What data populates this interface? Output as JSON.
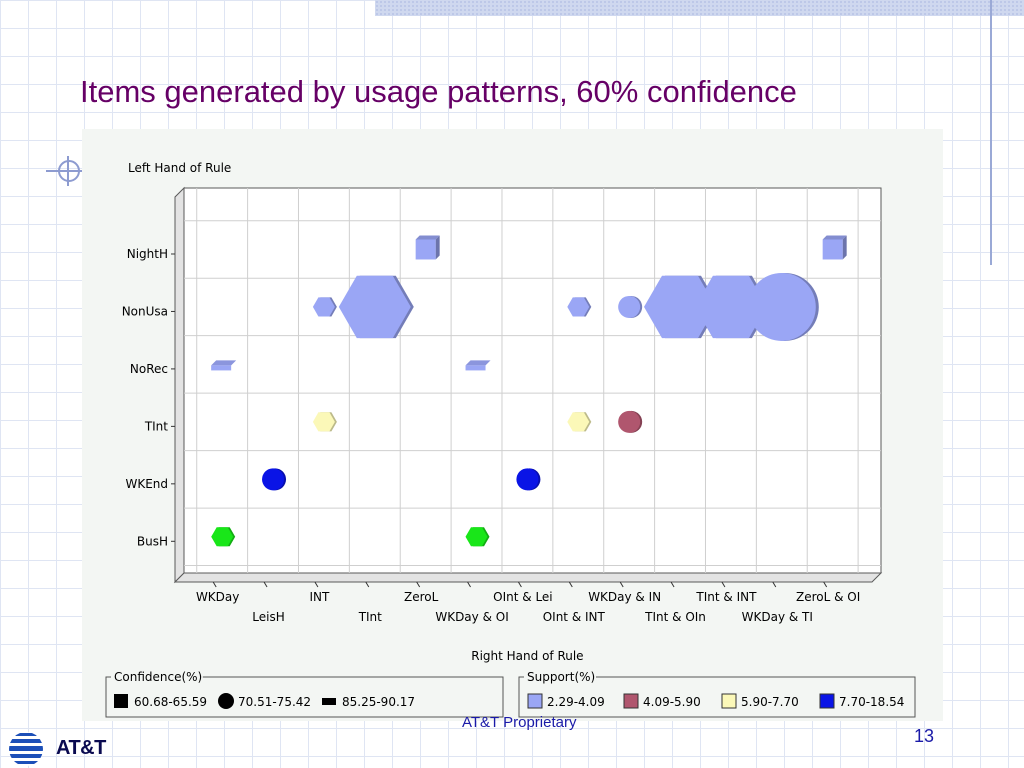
{
  "slide": {
    "title": "Items generated by usage patterns, 60% confidence",
    "footer_text": "AT&T Proprietary",
    "page_number": "13",
    "logo_text": "AT&T"
  },
  "chart_data": {
    "type": "scatter",
    "title": "",
    "ylabel": "Left Hand of Rule",
    "xlabel": "Right Hand of Rule",
    "y_categories": [
      "NightH",
      "NonUsa",
      "NoRec",
      "TInt",
      "WKEnd",
      "BusH"
    ],
    "x_categories": [
      "WKDay",
      "LeisH",
      "INT",
      "TInt",
      "ZeroL",
      "WKDay & OI",
      "OInt & Lei",
      "OInt & INT",
      "WKDay & IN",
      "TInt & OIn",
      "TInt & INT",
      "WKDay & TI",
      "ZeroL & OI"
    ],
    "points": [
      {
        "x": "ZeroL",
        "y": "NightH",
        "shape": "square",
        "support_class": "2.29-4.09",
        "size": 1
      },
      {
        "x": "ZeroL & OI",
        "y": "NightH",
        "shape": "square",
        "support_class": "2.29-4.09",
        "size": 1
      },
      {
        "x": "INT",
        "y": "NonUsa",
        "shape": "hexagon",
        "support_class": "2.29-4.09",
        "size": 1
      },
      {
        "x": "TInt",
        "y": "NonUsa",
        "shape": "hexagon",
        "support_class": "2.29-4.09",
        "size": 3
      },
      {
        "x": "OInt & INT",
        "y": "NonUsa",
        "shape": "hexagon",
        "support_class": "2.29-4.09",
        "size": 1
      },
      {
        "x": "WKDay & IN",
        "y": "NonUsa",
        "shape": "circle",
        "support_class": "2.29-4.09",
        "size": 1
      },
      {
        "x": "TInt & OIn",
        "y": "NonUsa",
        "shape": "hexagon",
        "support_class": "2.29-4.09",
        "size": 3
      },
      {
        "x": "TInt & INT",
        "y": "NonUsa",
        "shape": "hexagon",
        "support_class": "2.29-4.09",
        "size": 3
      },
      {
        "x": "WKDay & TI",
        "y": "NonUsa",
        "shape": "circle",
        "support_class": "2.29-4.09",
        "size": 3
      },
      {
        "x": "WKDay",
        "y": "NoRec",
        "shape": "flat",
        "support_class": "2.29-4.09",
        "size": 1
      },
      {
        "x": "WKDay & OI",
        "y": "NoRec",
        "shape": "flat",
        "support_class": "2.29-4.09",
        "size": 1
      },
      {
        "x": "INT",
        "y": "TInt",
        "shape": "hexagon",
        "support_class": "5.90-7.70",
        "size": 1
      },
      {
        "x": "OInt & INT",
        "y": "TInt",
        "shape": "hexagon",
        "support_class": "5.90-7.70",
        "size": 1
      },
      {
        "x": "WKDay & IN",
        "y": "TInt",
        "shape": "circle",
        "support_class": "4.09-5.90",
        "size": 1
      },
      {
        "x": "LeisH",
        "y": "WKEnd",
        "shape": "circle",
        "support_class": "7.70-18.54",
        "size": 1
      },
      {
        "x": "OInt & Lei",
        "y": "WKEnd",
        "shape": "circle",
        "support_class": "7.70-18.54",
        "size": 1
      },
      {
        "x": "WKDay",
        "y": "BusH",
        "shape": "hexagon",
        "support_class": "green",
        "size": 1
      },
      {
        "x": "WKDay & OI",
        "y": "BusH",
        "shape": "hexagon",
        "support_class": "green",
        "size": 1
      }
    ],
    "legend_confidence": {
      "title": "Confidence(%)",
      "items": [
        {
          "label": "60.68-65.59",
          "shape": "square"
        },
        {
          "label": "70.51-75.42",
          "shape": "circle"
        },
        {
          "label": "85.25-90.17",
          "shape": "flat"
        }
      ]
    },
    "legend_support": {
      "title": "Support(%)",
      "items": [
        {
          "label": "2.29-4.09",
          "color": "#9aa6f5"
        },
        {
          "label": "4.09-5.90",
          "color": "#b0566e"
        },
        {
          "label": "5.90-7.70",
          "color": "#fbf8b8"
        },
        {
          "label": "7.70-18.54",
          "color": "#0a14e6"
        }
      ]
    },
    "colors": {
      "2.29-4.09": "#9aa6f5",
      "4.09-5.90": "#b0566e",
      "5.90-7.70": "#fbf8b8",
      "7.70-18.54": "#0a14e6",
      "green": "#19e619"
    },
    "grid": true,
    "legend_position": "bottom"
  }
}
